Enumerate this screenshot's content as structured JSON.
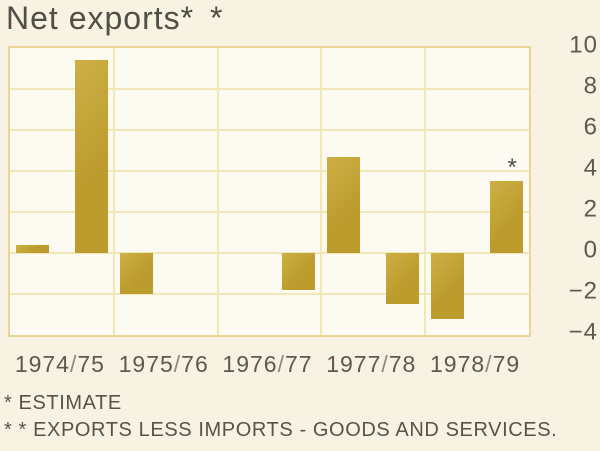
{
  "title": {
    "text": "Net exports",
    "mark": "* *"
  },
  "footnotes": {
    "estimate": "* ESTIMATE",
    "definition": "* * EXPORTS LESS IMPORTS -  GOODS AND SERVICES."
  },
  "colors": {
    "bar": "#c2a130",
    "grid": "#f2e7b6",
    "plot_border": "#e9d795",
    "plot_bg": "#fcfaf1",
    "page_bg": "#f7f2e2",
    "text": "#55534a"
  },
  "chart_data": {
    "type": "bar",
    "title": "Net exports",
    "subtitle_note": "Exports less imports - goods and services; two half-period bars per fiscal year",
    "categories": [
      "1974/75",
      "1975/76",
      "1976/77",
      "1977/78",
      "1978/79"
    ],
    "bars": [
      {
        "col": 0,
        "slot": 0,
        "year": "1974/75",
        "value": 0.4,
        "estimate": false
      },
      {
        "col": 0,
        "slot": 1,
        "year": "1974/75",
        "value": 9.4,
        "estimate": false
      },
      {
        "col": 1,
        "slot": 0,
        "year": "1975/76",
        "value": -2.0,
        "estimate": false
      },
      {
        "col": 2,
        "slot": 1,
        "year": "1976/77",
        "value": -1.8,
        "estimate": false
      },
      {
        "col": 3,
        "slot": 0,
        "year": "1977/78",
        "value": 4.7,
        "estimate": false
      },
      {
        "col": 3,
        "slot": 1,
        "year": "1977/78",
        "value": -2.5,
        "estimate": false
      },
      {
        "col": 4,
        "slot": 0,
        "year": "1978/79",
        "value": -3.2,
        "estimate": false
      },
      {
        "col": 4,
        "slot": 1,
        "year": "1978/79",
        "value": 3.5,
        "estimate": true
      }
    ],
    "estimate_marker": "*",
    "y_ticks": [
      10,
      8,
      6,
      4,
      2,
      0,
      -2,
      -4
    ],
    "y_tick_labels": [
      "10",
      "8",
      "6",
      "4",
      "2",
      "0",
      "−2",
      "−4"
    ],
    "ylim": [
      -4,
      10
    ],
    "grid": true,
    "gridline_step": 2,
    "axis_side": "right",
    "xlabel": "",
    "ylabel": ""
  }
}
